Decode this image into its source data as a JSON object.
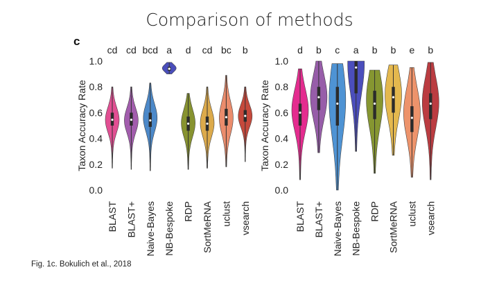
{
  "slide": {
    "title": "Comparison of methods",
    "panel_letter": "c",
    "caption": "Fig. 1c. Bokulich et al., 2018"
  },
  "chart_data": [
    {
      "type": "violin",
      "ylabel": "Taxon Accuracy Rate",
      "ylim": [
        0.0,
        1.0
      ],
      "yticks": [
        "0.0",
        "0.2",
        "0.4",
        "0.6",
        "0.8",
        "1.0"
      ],
      "grid": false,
      "categories": [
        "BLAST",
        "BLAST+",
        "Naive-Bayes",
        "NB-Bespoke",
        "RDP",
        "SortMeRNA",
        "uclust",
        "vsearch"
      ],
      "significance_letters": [
        "cd",
        "cd",
        "bcd",
        "a",
        "d",
        "cd",
        "bc",
        "b"
      ],
      "colors": [
        "#e0408a",
        "#9a4fa6",
        "#3d7fc4",
        "#3b3fb5",
        "#7d8a1e",
        "#d9a33c",
        "#e9825f",
        "#c0392b"
      ],
      "violins": [
        {
          "min": 0.17,
          "q1": 0.5,
          "median": 0.545,
          "q3": 0.6,
          "max": 0.8,
          "mode": 0.545
        },
        {
          "min": 0.16,
          "q1": 0.5,
          "median": 0.545,
          "q3": 0.6,
          "max": 0.8,
          "mode": 0.54
        },
        {
          "min": 0.15,
          "q1": 0.49,
          "median": 0.54,
          "q3": 0.6,
          "max": 0.83,
          "mode": 0.56
        },
        {
          "min": 0.9,
          "q1": 0.925,
          "median": 0.94,
          "q3": 0.955,
          "max": 0.99,
          "mode": 0.945
        },
        {
          "min": 0.16,
          "q1": 0.46,
          "median": 0.515,
          "q3": 0.57,
          "max": 0.75,
          "mode": 0.52
        },
        {
          "min": 0.17,
          "q1": 0.46,
          "median": 0.515,
          "q3": 0.57,
          "max": 0.8,
          "mode": 0.52
        },
        {
          "min": 0.18,
          "q1": 0.5,
          "median": 0.565,
          "q3": 0.63,
          "max": 0.89,
          "mode": 0.56
        },
        {
          "min": 0.22,
          "q1": 0.53,
          "median": 0.575,
          "q3": 0.62,
          "max": 0.8,
          "mode": 0.575
        }
      ]
    },
    {
      "type": "violin",
      "ylabel": "Taxon Accuracy Rate",
      "ylim": [
        0.0,
        1.0
      ],
      "yticks": [
        "0.0",
        "0.2",
        "0.4",
        "0.6",
        "0.8",
        "1.0"
      ],
      "grid": false,
      "categories": [
        "BLAST",
        "BLAST+",
        "Naive-Bayes",
        "NB-Bespoke",
        "RDP",
        "SortMeRNA",
        "uclust",
        "vsearch"
      ],
      "significance_letters": [
        "d",
        "b",
        "c",
        "a",
        "b",
        "b",
        "e",
        "b"
      ],
      "colors": [
        "#e21a86",
        "#8e4fa2",
        "#3f8ad0",
        "#3c3fb6",
        "#7c8d1f",
        "#e2b23f",
        "#ec8a5e",
        "#b52b31"
      ],
      "violins": [
        {
          "min": 0.08,
          "q1": 0.5,
          "median": 0.6,
          "q3": 0.67,
          "max": 0.94,
          "mode": 0.62
        },
        {
          "min": 0.29,
          "q1": 0.62,
          "median": 0.72,
          "q3": 0.8,
          "max": 1.0,
          "mode": 0.72
        },
        {
          "min": 0.0,
          "q1": 0.5,
          "median": 0.67,
          "q3": 0.8,
          "max": 0.98,
          "mode": 0.7
        },
        {
          "min": 0.3,
          "q1": 0.75,
          "median": 0.95,
          "q3": 1.0,
          "max": 1.0,
          "mode": 0.98
        },
        {
          "min": 0.13,
          "q1": 0.55,
          "median": 0.67,
          "q3": 0.77,
          "max": 0.93,
          "mode": 0.7
        },
        {
          "min": 0.27,
          "q1": 0.6,
          "median": 0.72,
          "q3": 0.8,
          "max": 0.97,
          "mode": 0.74
        },
        {
          "min": 0.1,
          "q1": 0.45,
          "median": 0.56,
          "q3": 0.65,
          "max": 0.95,
          "mode": 0.6
        },
        {
          "min": 0.08,
          "q1": 0.55,
          "median": 0.67,
          "q3": 0.75,
          "max": 0.99,
          "mode": 0.68
        }
      ]
    }
  ]
}
